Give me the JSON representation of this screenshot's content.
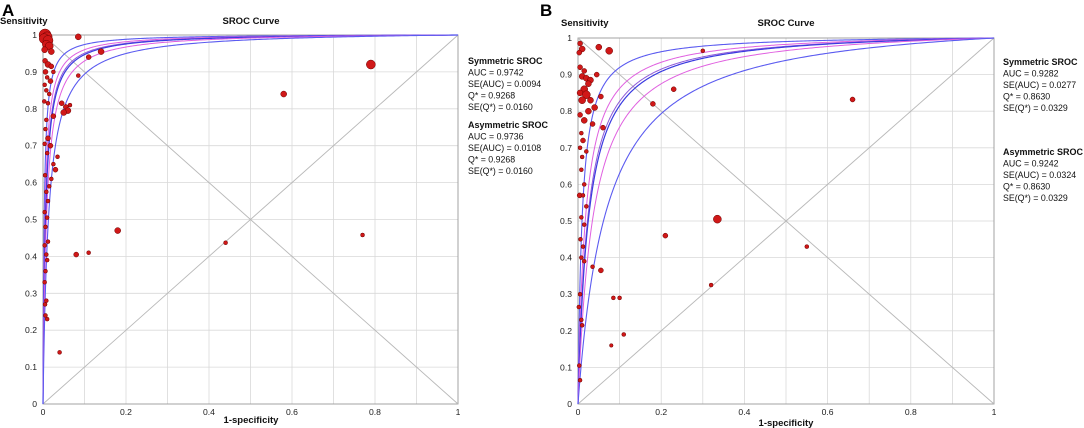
{
  "chart_data": [
    {
      "type": "scatter",
      "panel_label": "A",
      "title": "SROC Curve",
      "xlabel": "1-specificity",
      "ylabel": "Sensitivity",
      "xlim": [
        0,
        1
      ],
      "ylim": [
        0,
        1
      ],
      "x_ticks": [
        "0",
        "0.2",
        "0.4",
        "0.6",
        "0.8",
        "1"
      ],
      "y_ticks": [
        "0",
        "0.1",
        "0.2",
        "0.3",
        "0.4",
        "0.5",
        "0.6",
        "0.7",
        "0.8",
        "0.9",
        "1"
      ],
      "grid": true,
      "curve_params": {
        "center": 0.9268,
        "inner_spread": 0.3,
        "outer_spread": 0.75
      },
      "stat_blocks": [
        {
          "heading": "Symmetric SROC",
          "lines": [
            "AUC = 0.9742",
            "SE(AUC) = 0.0094",
            "Q* = 0.9268",
            "SE(Q*) = 0.0160"
          ]
        },
        {
          "heading": "Asymmetric SROC",
          "lines": [
            "AUC = 0.9736",
            "SE(AUC) = 0.0108",
            "Q* = 0.9268",
            "SE(Q*) = 0.0160"
          ]
        }
      ],
      "points": [
        {
          "x": 0.005,
          "y": 1.0,
          "s": 6
        },
        {
          "x": 0.01,
          "y": 0.995,
          "s": 5
        },
        {
          "x": 0.003,
          "y": 0.99,
          "s": 5
        },
        {
          "x": 0.012,
          "y": 0.985,
          "s": 5
        },
        {
          "x": 0.008,
          "y": 0.975,
          "s": 4
        },
        {
          "x": 0.015,
          "y": 0.97,
          "s": 4
        },
        {
          "x": 0.004,
          "y": 0.96,
          "s": 3
        },
        {
          "x": 0.02,
          "y": 0.955,
          "s": 3
        },
        {
          "x": 0.085,
          "y": 0.995,
          "s": 3
        },
        {
          "x": 0.14,
          "y": 0.955,
          "s": 3
        },
        {
          "x": 0.11,
          "y": 0.94,
          "s": 2.5
        },
        {
          "x": 0.005,
          "y": 0.93,
          "s": 2.5
        },
        {
          "x": 0.012,
          "y": 0.92,
          "s": 3
        },
        {
          "x": 0.02,
          "y": 0.915,
          "s": 2.5
        },
        {
          "x": 0.006,
          "y": 0.9,
          "s": 2.5
        },
        {
          "x": 0.025,
          "y": 0.9,
          "s": 2
        },
        {
          "x": 0.01,
          "y": 0.885,
          "s": 2
        },
        {
          "x": 0.018,
          "y": 0.875,
          "s": 2.5
        },
        {
          "x": 0.004,
          "y": 0.865,
          "s": 2
        },
        {
          "x": 0.008,
          "y": 0.85,
          "s": 2
        },
        {
          "x": 0.015,
          "y": 0.84,
          "s": 2
        },
        {
          "x": 0.003,
          "y": 0.82,
          "s": 2
        },
        {
          "x": 0.012,
          "y": 0.815,
          "s": 2
        },
        {
          "x": 0.045,
          "y": 0.815,
          "s": 2.5
        },
        {
          "x": 0.055,
          "y": 0.805,
          "s": 2.5
        },
        {
          "x": 0.06,
          "y": 0.795,
          "s": 3
        },
        {
          "x": 0.05,
          "y": 0.79,
          "s": 3
        },
        {
          "x": 0.085,
          "y": 0.89,
          "s": 2
        },
        {
          "x": 0.065,
          "y": 0.81,
          "s": 2
        },
        {
          "x": 0.008,
          "y": 0.77,
          "s": 2
        },
        {
          "x": 0.025,
          "y": 0.78,
          "s": 2.5
        },
        {
          "x": 0.006,
          "y": 0.745,
          "s": 2
        },
        {
          "x": 0.012,
          "y": 0.72,
          "s": 2.5
        },
        {
          "x": 0.004,
          "y": 0.705,
          "s": 2
        },
        {
          "x": 0.018,
          "y": 0.7,
          "s": 2.5
        },
        {
          "x": 0.01,
          "y": 0.68,
          "s": 2
        },
        {
          "x": 0.035,
          "y": 0.67,
          "s": 2
        },
        {
          "x": 0.025,
          "y": 0.65,
          "s": 2
        },
        {
          "x": 0.03,
          "y": 0.635,
          "s": 2.5
        },
        {
          "x": 0.005,
          "y": 0.62,
          "s": 2
        },
        {
          "x": 0.02,
          "y": 0.61,
          "s": 2
        },
        {
          "x": 0.015,
          "y": 0.59,
          "s": 2
        },
        {
          "x": 0.008,
          "y": 0.575,
          "s": 2
        },
        {
          "x": 0.012,
          "y": 0.55,
          "s": 2
        },
        {
          "x": 0.004,
          "y": 0.52,
          "s": 2
        },
        {
          "x": 0.01,
          "y": 0.505,
          "s": 2
        },
        {
          "x": 0.006,
          "y": 0.48,
          "s": 2
        },
        {
          "x": 0.012,
          "y": 0.44,
          "s": 2
        },
        {
          "x": 0.004,
          "y": 0.43,
          "s": 2
        },
        {
          "x": 0.008,
          "y": 0.405,
          "s": 2
        },
        {
          "x": 0.01,
          "y": 0.39,
          "s": 2
        },
        {
          "x": 0.006,
          "y": 0.36,
          "s": 2
        },
        {
          "x": 0.004,
          "y": 0.33,
          "s": 2
        },
        {
          "x": 0.008,
          "y": 0.28,
          "s": 2
        },
        {
          "x": 0.005,
          "y": 0.27,
          "s": 2
        },
        {
          "x": 0.006,
          "y": 0.24,
          "s": 2
        },
        {
          "x": 0.01,
          "y": 0.23,
          "s": 2
        },
        {
          "x": 0.04,
          "y": 0.14,
          "s": 2
        },
        {
          "x": 0.08,
          "y": 0.405,
          "s": 2.5
        },
        {
          "x": 0.11,
          "y": 0.41,
          "s": 2
        },
        {
          "x": 0.18,
          "y": 0.47,
          "s": 3
        },
        {
          "x": 0.44,
          "y": 0.437,
          "s": 2
        },
        {
          "x": 0.77,
          "y": 0.458,
          "s": 2
        },
        {
          "x": 0.58,
          "y": 0.84,
          "s": 3
        },
        {
          "x": 0.79,
          "y": 0.92,
          "s": 4.5
        }
      ]
    },
    {
      "type": "scatter",
      "panel_label": "B",
      "title": "SROC Curve",
      "xlabel": "1-specificity",
      "ylabel": "Sensitivity",
      "xlim": [
        0,
        1
      ],
      "ylim": [
        0,
        1
      ],
      "x_ticks": [
        "0",
        "0.2",
        "0.4",
        "0.6",
        "0.8",
        "1"
      ],
      "y_ticks": [
        "0",
        "0.1",
        "0.2",
        "0.3",
        "0.4",
        "0.5",
        "0.6",
        "0.7",
        "0.8",
        "0.9",
        "1"
      ],
      "grid": true,
      "curve_params": {
        "center": 0.863,
        "inner_spread": 0.35,
        "outer_spread": 0.95
      },
      "stat_blocks": [
        {
          "heading": "Symmetric SROC",
          "lines": [
            "AUC = 0.9282",
            "SE(AUC) = 0.0277",
            "Q* = 0.8630",
            "SE(Q*) = 0.0329"
          ]
        },
        {
          "heading": "Asymmetric SROC",
          "lines": [
            "AUC = 0.9242",
            "SE(AUC) = 0.0324",
            "Q* = 0.8630",
            "SE(Q*) = 0.0329"
          ]
        }
      ],
      "points": [
        {
          "x": 0.005,
          "y": 0.985,
          "s": 2.5
        },
        {
          "x": 0.01,
          "y": 0.97,
          "s": 3
        },
        {
          "x": 0.003,
          "y": 0.96,
          "s": 2.5
        },
        {
          "x": 0.05,
          "y": 0.975,
          "s": 3
        },
        {
          "x": 0.075,
          "y": 0.965,
          "s": 3.5
        },
        {
          "x": 0.3,
          "y": 0.965,
          "s": 2
        },
        {
          "x": 0.005,
          "y": 0.92,
          "s": 2.5
        },
        {
          "x": 0.015,
          "y": 0.91,
          "s": 2.5
        },
        {
          "x": 0.01,
          "y": 0.895,
          "s": 3
        },
        {
          "x": 0.02,
          "y": 0.89,
          "s": 3
        },
        {
          "x": 0.03,
          "y": 0.885,
          "s": 3
        },
        {
          "x": 0.045,
          "y": 0.9,
          "s": 2.5
        },
        {
          "x": 0.025,
          "y": 0.875,
          "s": 3
        },
        {
          "x": 0.015,
          "y": 0.86,
          "s": 3.5
        },
        {
          "x": 0.005,
          "y": 0.85,
          "s": 3
        },
        {
          "x": 0.02,
          "y": 0.845,
          "s": 4
        },
        {
          "x": 0.01,
          "y": 0.83,
          "s": 3.5
        },
        {
          "x": 0.03,
          "y": 0.83,
          "s": 3
        },
        {
          "x": 0.055,
          "y": 0.84,
          "s": 2.5
        },
        {
          "x": 0.04,
          "y": 0.81,
          "s": 3
        },
        {
          "x": 0.025,
          "y": 0.8,
          "s": 3
        },
        {
          "x": 0.005,
          "y": 0.79,
          "s": 2.5
        },
        {
          "x": 0.015,
          "y": 0.775,
          "s": 3
        },
        {
          "x": 0.035,
          "y": 0.765,
          "s": 2.5
        },
        {
          "x": 0.06,
          "y": 0.755,
          "s": 2.5
        },
        {
          "x": 0.18,
          "y": 0.82,
          "s": 2.5
        },
        {
          "x": 0.23,
          "y": 0.86,
          "s": 2.5
        },
        {
          "x": 0.66,
          "y": 0.832,
          "s": 2.5
        },
        {
          "x": 0.008,
          "y": 0.74,
          "s": 2
        },
        {
          "x": 0.012,
          "y": 0.72,
          "s": 2.5
        },
        {
          "x": 0.005,
          "y": 0.7,
          "s": 2
        },
        {
          "x": 0.02,
          "y": 0.69,
          "s": 2
        },
        {
          "x": 0.01,
          "y": 0.675,
          "s": 2
        },
        {
          "x": 0.008,
          "y": 0.64,
          "s": 2
        },
        {
          "x": 0.015,
          "y": 0.6,
          "s": 2
        },
        {
          "x": 0.004,
          "y": 0.57,
          "s": 2.5
        },
        {
          "x": 0.012,
          "y": 0.57,
          "s": 2
        },
        {
          "x": 0.02,
          "y": 0.54,
          "s": 2
        },
        {
          "x": 0.008,
          "y": 0.51,
          "s": 2
        },
        {
          "x": 0.015,
          "y": 0.49,
          "s": 2
        },
        {
          "x": 0.006,
          "y": 0.45,
          "s": 2
        },
        {
          "x": 0.012,
          "y": 0.43,
          "s": 2
        },
        {
          "x": 0.008,
          "y": 0.4,
          "s": 2
        },
        {
          "x": 0.015,
          "y": 0.39,
          "s": 2
        },
        {
          "x": 0.035,
          "y": 0.375,
          "s": 2
        },
        {
          "x": 0.055,
          "y": 0.365,
          "s": 2.5
        },
        {
          "x": 0.005,
          "y": 0.3,
          "s": 2
        },
        {
          "x": 0.002,
          "y": 0.265,
          "s": 2
        },
        {
          "x": 0.008,
          "y": 0.23,
          "s": 2
        },
        {
          "x": 0.01,
          "y": 0.215,
          "s": 2
        },
        {
          "x": 0.003,
          "y": 0.105,
          "s": 2
        },
        {
          "x": 0.005,
          "y": 0.065,
          "s": 2
        },
        {
          "x": 0.21,
          "y": 0.46,
          "s": 2.5
        },
        {
          "x": 0.335,
          "y": 0.505,
          "s": 4
        },
        {
          "x": 0.55,
          "y": 0.43,
          "s": 2
        },
        {
          "x": 0.32,
          "y": 0.325,
          "s": 2
        },
        {
          "x": 0.085,
          "y": 0.29,
          "s": 2
        },
        {
          "x": 0.1,
          "y": 0.29,
          "s": 2
        },
        {
          "x": 0.08,
          "y": 0.16,
          "s": 1.8
        },
        {
          "x": 0.11,
          "y": 0.19,
          "s": 2
        }
      ]
    }
  ]
}
